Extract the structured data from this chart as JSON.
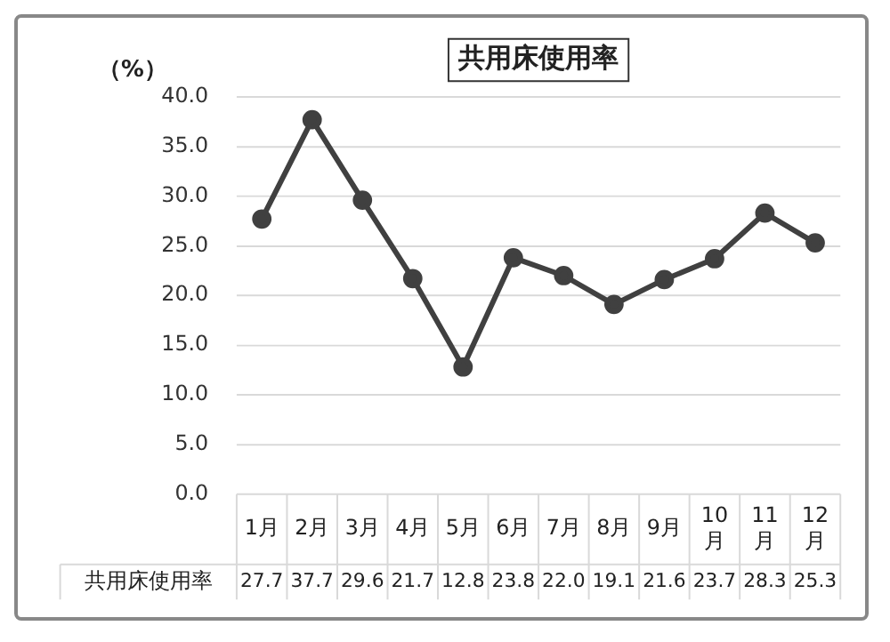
{
  "chart_data": {
    "type": "line",
    "title": "共用床使用率",
    "ylabel": "（%）",
    "categories": [
      "1月",
      "2月",
      "3月",
      "4月",
      "5月",
      "6月",
      "7月",
      "8月",
      "9月",
      "10月",
      "11月",
      "12月"
    ],
    "series": [
      {
        "name": "共用床使用率",
        "color": "#404040",
        "values": [
          27.7,
          37.7,
          29.6,
          21.7,
          12.8,
          23.8,
          22.0,
          19.1,
          21.6,
          23.7,
          28.3,
          25.3
        ],
        "value_labels": [
          "27.7",
          "37.7",
          "29.6",
          "21.7",
          "12.8",
          "23.8",
          "22.0",
          "19.1",
          "21.6",
          "23.7",
          "28.3",
          "25.3"
        ]
      }
    ],
    "ylim": [
      0,
      40
    ],
    "yticks": [
      {
        "value": 0,
        "label": "0.0"
      },
      {
        "value": 5,
        "label": "5.0"
      },
      {
        "value": 10,
        "label": "10.0"
      },
      {
        "value": 15,
        "label": "15.0"
      },
      {
        "value": 20,
        "label": "20.0"
      },
      {
        "value": 25,
        "label": "25.0"
      },
      {
        "value": 30,
        "label": "30.0"
      },
      {
        "value": 35,
        "label": "35.0"
      },
      {
        "value": 40,
        "label": "40.0"
      }
    ],
    "grid": "y",
    "legend": false,
    "marker": "circle",
    "line_style": "solid"
  }
}
